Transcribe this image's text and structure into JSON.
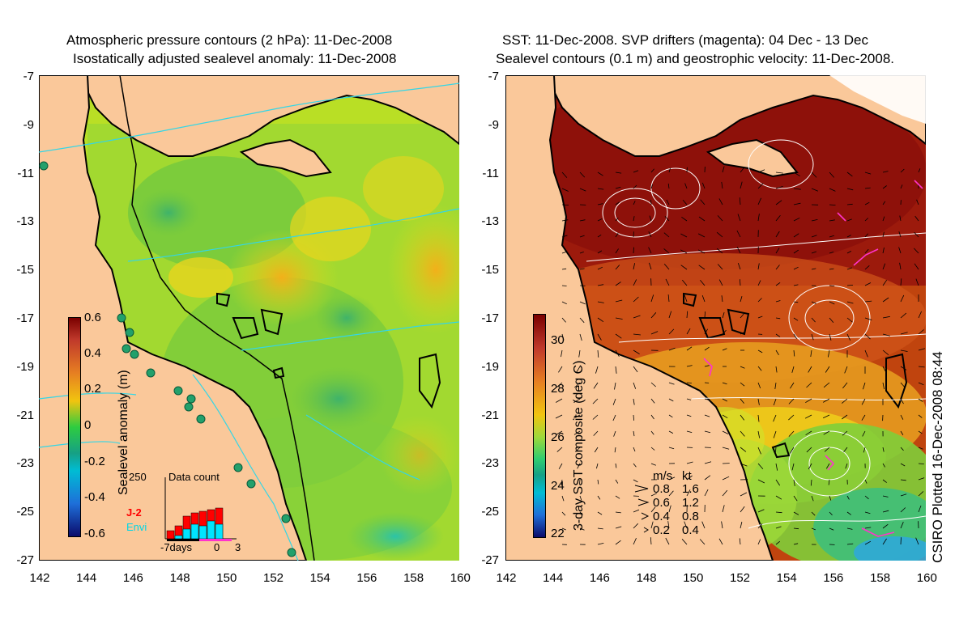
{
  "left_panel": {
    "title_line1": "Atmospheric pressure contours (2 hPa): 11-Dec-2008",
    "title_line2": "Isostatically adjusted sealevel anomaly: 11-Dec-2008",
    "colorbar_label": "Sealevel anomaly (m)",
    "colorbar_ticks": [
      "0.6",
      "0.4",
      "0.2",
      "0",
      "-0.2",
      "-0.4",
      "-0.6"
    ],
    "inset": {
      "title": "Data count",
      "y_max_label": "250",
      "series": [
        "J-2",
        "Envi"
      ],
      "series_colors": [
        "#ff0000",
        "#00e5ff"
      ],
      "x_labels": [
        "-7days",
        "0",
        "3"
      ]
    }
  },
  "right_panel": {
    "title_line1": "SST: 11-Dec-2008. SVP drifters (magenta): 04 Dec - 13 Dec",
    "title_line2": "Sealevel contours (0.1 m) and geostrophic velocity: 11-Dec-2008.",
    "colorbar_label": "3-day SST composite (deg C)",
    "colorbar_ticks": [
      "30",
      "28",
      "26",
      "24",
      "22"
    ],
    "velocity_legend": {
      "header_ms": "m/s",
      "header_kt": "kt",
      "rows": [
        {
          "ms": "0.8",
          "kt": "1.6"
        },
        {
          "ms": "0.6",
          "kt": "1.2"
        },
        {
          "ms": "0.4",
          "kt": "0.8"
        },
        {
          "ms": "0.2",
          "kt": "0.4"
        }
      ]
    }
  },
  "axes": {
    "y_ticks": [
      "-7",
      "-9",
      "-11",
      "-13",
      "-15",
      "-17",
      "-19",
      "-21",
      "-23",
      "-25",
      "-27"
    ],
    "x_ticks": [
      "142",
      "144",
      "146",
      "148",
      "150",
      "152",
      "154",
      "156",
      "158",
      "160"
    ]
  },
  "credit": "CSIRO Plotted 16-Dec-2008 08:44",
  "colors": {
    "land": "#fac89a",
    "coast": "#000000",
    "contour_cyan": "#33d6e6",
    "drifter": "#ff33cc"
  }
}
